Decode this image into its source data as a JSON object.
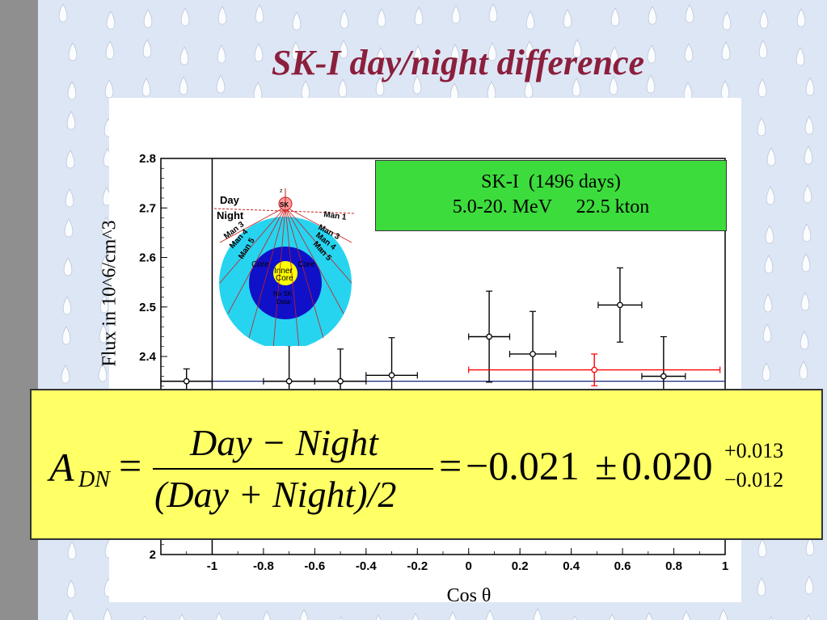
{
  "slide": {
    "title": "SK-I day/night difference",
    "background_color": "#dde6f5",
    "title_color": "#8b1f3c"
  },
  "legend": {
    "line1": "SK-I  (1496 days)",
    "line2": "5.0-20. MeV     22.5 kton",
    "color": "#3ddc3d"
  },
  "inset": {
    "labels": {
      "day": "Day",
      "night": "Night",
      "sk": "SK",
      "z": "z",
      "man1": "Man 1",
      "man2": "Man 2",
      "man3": "Man 3",
      "man4": "Man 4",
      "man5": "Man 5",
      "man3_left": "Man 3",
      "man4_left": "Man 4",
      "man5_left": "Man 5",
      "core_left": "Core",
      "core_right": "Core",
      "inner": "Inner",
      "core_center": "Core",
      "no_sk": "No SK",
      "data": "Data"
    }
  },
  "formula": {
    "lhs": "A",
    "lhs_sub": "DN",
    "equals": "=",
    "numerator": "Day − Night",
    "denominator": "(Day + Night)/2",
    "equals2": "=",
    "value": "−0.021",
    "pm": "±",
    "stat": "0.020",
    "sys_plus": "+0.013",
    "sys_minus": "−0.012",
    "box_color": "#ffff66"
  },
  "chart_data": {
    "type": "scatter",
    "xlabel": "Cos θ",
    "ylabel": "Flux in 10^6/cm^3",
    "xlim": [
      -1.2,
      1.0
    ],
    "ylim": [
      2.0,
      2.8
    ],
    "xticks": [
      "-1",
      "-0.8",
      "-0.6",
      "-0.4",
      "-0.2",
      "0",
      "0.2",
      "0.4",
      "0.6",
      "0.8",
      "1"
    ],
    "yticks": [
      "2",
      "2.4",
      "2.5",
      "2.6",
      "2.7",
      "2.8"
    ],
    "grid": false,
    "series": [
      {
        "color": "#000000",
        "points": [
          {
            "x": -1.1,
            "y": 2.35,
            "xerr": 0.1,
            "yerr": 0.025
          },
          {
            "x": -0.7,
            "y": 2.35,
            "xerr": 0.1,
            "yerr": 0.072
          },
          {
            "x": -0.5,
            "y": 2.35,
            "xerr": 0.1,
            "yerr": 0.065
          },
          {
            "x": -0.3,
            "y": 2.362,
            "xerr": 0.1,
            "yerr": 0.076
          },
          {
            "x": 0.08,
            "y": 2.44,
            "xerr": 0.08,
            "yerr": 0.092
          },
          {
            "x": 0.25,
            "y": 2.405,
            "xerr": 0.09,
            "yerr": 0.086
          },
          {
            "x": 0.59,
            "y": 2.504,
            "xerr": 0.085,
            "yerr": 0.075
          },
          {
            "x": 0.76,
            "y": 2.36,
            "xerr": 0.085,
            "yerr": 0.08
          }
        ]
      },
      {
        "color": "#ff0000",
        "points": [
          {
            "x": 0.49,
            "y": 2.373,
            "xerr": 0.49,
            "yerr": 0.032
          }
        ]
      }
    ],
    "reference_lines": [
      {
        "y": 2.35,
        "color": "#1a237e"
      }
    ],
    "divider_x": -1.0
  }
}
